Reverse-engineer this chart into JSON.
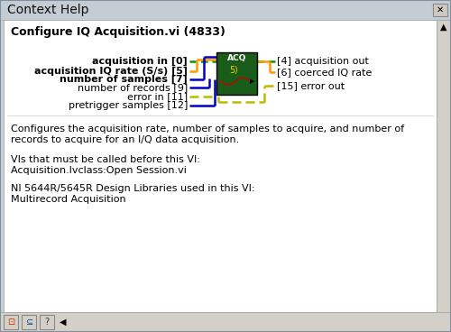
{
  "title": "Context Help",
  "bg_outer": "#c8d0d8",
  "bg_titlebar": "#c4ccd4",
  "bg_white": "#ffffff",
  "bg_footer": "#d8d4cc",
  "vi_title": "Configure IQ Acquisition.vi (4833)",
  "left_labels": [
    {
      "text": "acquisition in [0]",
      "bold": true
    },
    {
      "text": "acquisition IQ rate (S/s) [5]",
      "bold": true
    },
    {
      "text": "number of samples [7]",
      "bold": true
    },
    {
      "text": "number of records [9]",
      "bold": false
    },
    {
      "text": "error in [11]",
      "bold": false
    },
    {
      "text": "pretrigger samples [12]",
      "bold": false
    }
  ],
  "right_labels": [
    {
      "text": "[4] acquisition out",
      "bold": false
    },
    {
      "text": "[6] coerced IQ rate",
      "bold": false
    },
    {
      "text": "[15] error out",
      "bold": false
    }
  ],
  "block_color": "#1a5c1a",
  "block_label": "ACQ",
  "description_line1": "Configures the acquisition rate, number of samples to acquire, and number of",
  "description_line2": "records to acquire for an I/Q data acquisition.",
  "vi_prereq_title": "VIs that must be called before this VI:",
  "vi_prereq": "Acquisition.lvclass:Open Session.vi",
  "lib_title": "NI 5644R/5645R Design Libraries used in this VI:",
  "lib_content": "Multirecord Acquisition",
  "green_wire": "#009900",
  "orange_wire": "#ff9900",
  "blue_wire": "#0000cc",
  "yellow_wire": "#bbbb00",
  "wire_lw": 1.8,
  "font_size": 8.0,
  "title_font_size": 9.0
}
